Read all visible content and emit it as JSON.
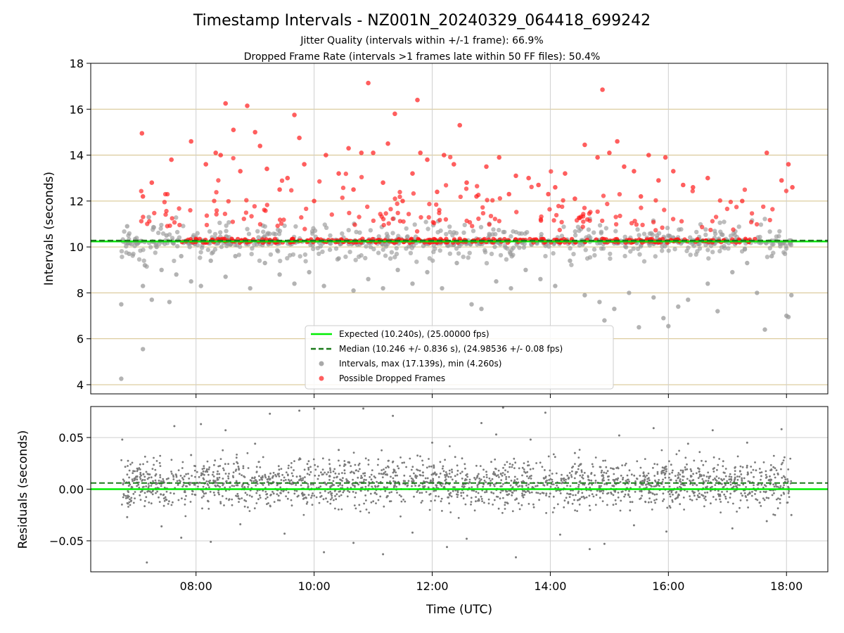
{
  "figure": {
    "title": "Timestamp Intervals - NZ001N_20240329_064418_699242",
    "subtitle_1": "Jitter Quality (intervals within +/-1 frame): 66.9%",
    "subtitle_2": "Dropped Frame Rate (intervals >1 frames late within 50 FF files): 50.4%"
  },
  "colors": {
    "expected": "#00ee00",
    "median": "#1b7a1b",
    "interval_points": "#9a9a9a",
    "dropped_points": "#ff1a1a",
    "residual_points": "#7a7a7a",
    "hgrid_top": "#d4c088",
    "grid": "#cfcfcf"
  },
  "chart_data": [
    {
      "type": "scatter",
      "panel": "top",
      "xlabel": "",
      "ylabel": "Intervals (seconds)",
      "xlim": [
        "06:13",
        "18:42"
      ],
      "ylim": [
        3.6,
        18
      ],
      "yticks": [
        4,
        6,
        8,
        10,
        12,
        14,
        16,
        18
      ],
      "xticks": [
        "08:00",
        "10:00",
        "12:00",
        "14:00",
        "16:00",
        "18:00"
      ],
      "grid": true,
      "legend_position": "lower-center",
      "expected_interval": 10.24,
      "median_interval": 10.246,
      "interval_max": 17.139,
      "interval_min": 4.26,
      "time_range": [
        "06:44",
        "18:05"
      ],
      "legend": [
        {
          "label": "Expected (10.240s), (25.00000 fps)",
          "style": "line-solid",
          "color_key": "expected"
        },
        {
          "label": "Median (10.246 +/- 0.836 s), (24.98536 +/- 0.08 fps)",
          "style": "line-dashed",
          "color_key": "median"
        },
        {
          "label": "Intervals, max (17.139s), min (4.260s)",
          "style": "dot",
          "color_key": "interval_points"
        },
        {
          "label": "Possible Dropped Frames",
          "style": "dot",
          "color_key": "dropped_points"
        }
      ],
      "series": [
        {
          "name": "Intervals",
          "points": [
            [
              "06:44",
              4.26
            ],
            [
              "06:44",
              7.5
            ],
            [
              "06:50",
              10.9
            ],
            [
              "06:52",
              9.7
            ],
            [
              "07:06",
              5.55
            ],
            [
              "07:06",
              8.3
            ],
            [
              "07:08",
              9.2
            ],
            [
              "07:12",
              11.3
            ],
            [
              "07:15",
              7.7
            ],
            [
              "07:20",
              10.0
            ],
            [
              "07:25",
              9.0
            ],
            [
              "07:30",
              10.5
            ],
            [
              "07:33",
              7.6
            ],
            [
              "07:40",
              8.8
            ],
            [
              "07:45",
              9.6
            ],
            [
              "07:55",
              8.5
            ],
            [
              "08:05",
              8.3
            ],
            [
              "08:15",
              9.4
            ],
            [
              "08:30",
              8.7
            ],
            [
              "08:40",
              9.6
            ],
            [
              "08:55",
              8.2
            ],
            [
              "09:10",
              9.3
            ],
            [
              "09:25",
              8.8
            ],
            [
              "09:40",
              8.4
            ],
            [
              "09:55",
              8.9
            ],
            [
              "10:10",
              8.3
            ],
            [
              "10:25",
              9.5
            ],
            [
              "10:40",
              8.1
            ],
            [
              "10:55",
              8.6
            ],
            [
              "11:10",
              8.2
            ],
            [
              "11:25",
              9.0
            ],
            [
              "11:40",
              8.4
            ],
            [
              "11:55",
              8.9
            ],
            [
              "12:10",
              8.2
            ],
            [
              "12:25",
              9.3
            ],
            [
              "12:40",
              7.5
            ],
            [
              "12:50",
              7.3
            ],
            [
              "13:05",
              8.5
            ],
            [
              "13:20",
              8.2
            ],
            [
              "13:35",
              9.0
            ],
            [
              "13:50",
              8.6
            ],
            [
              "14:05",
              8.3
            ],
            [
              "14:20",
              9.4
            ],
            [
              "14:35",
              7.9
            ],
            [
              "14:50",
              7.6
            ],
            [
              "14:55",
              6.8
            ],
            [
              "15:05",
              7.3
            ],
            [
              "15:20",
              8.0
            ],
            [
              "15:30",
              6.5
            ],
            [
              "15:45",
              7.8
            ],
            [
              "15:55",
              6.9
            ],
            [
              "16:00",
              6.55
            ],
            [
              "16:10",
              7.4
            ],
            [
              "16:20",
              7.7
            ],
            [
              "16:40",
              8.4
            ],
            [
              "16:50",
              7.2
            ],
            [
              "17:05",
              8.9
            ],
            [
              "17:20",
              9.3
            ],
            [
              "17:30",
              8.0
            ],
            [
              "17:38",
              6.4
            ],
            [
              "17:45",
              9.6
            ],
            [
              "18:00",
              7.0
            ],
            [
              "18:02",
              6.95
            ],
            [
              "18:05",
              7.9
            ]
          ]
        },
        {
          "name": "Possible Dropped Frames",
          "points": [
            [
              "07:05",
              14.95
            ],
            [
              "07:06",
              12.2
            ],
            [
              "07:15",
              12.8
            ],
            [
              "07:35",
              13.8
            ],
            [
              "07:55",
              14.6
            ],
            [
              "08:10",
              13.6
            ],
            [
              "08:20",
              14.1
            ],
            [
              "08:25",
              14.0
            ],
            [
              "08:30",
              16.25
            ],
            [
              "08:38",
              15.1
            ],
            [
              "08:45",
              13.3
            ],
            [
              "08:52",
              16.15
            ],
            [
              "09:00",
              15.0
            ],
            [
              "09:05",
              14.4
            ],
            [
              "09:12",
              13.4
            ],
            [
              "09:25",
              12.5
            ],
            [
              "09:33",
              13.0
            ],
            [
              "09:40",
              15.75
            ],
            [
              "09:45",
              14.75
            ],
            [
              "09:50",
              13.6
            ],
            [
              "10:00",
              12.0
            ],
            [
              "10:12",
              14.0
            ],
            [
              "10:25",
              13.2
            ],
            [
              "10:35",
              14.3
            ],
            [
              "10:40",
              12.5
            ],
            [
              "10:48",
              14.1
            ],
            [
              "10:55",
              17.14
            ],
            [
              "11:00",
              14.1
            ],
            [
              "11:10",
              12.8
            ],
            [
              "11:15",
              14.5
            ],
            [
              "11:22",
              15.8
            ],
            [
              "11:30",
              12.0
            ],
            [
              "11:40",
              13.2
            ],
            [
              "11:45",
              16.4
            ],
            [
              "11:48",
              14.1
            ],
            [
              "11:55",
              13.8
            ],
            [
              "12:05",
              12.4
            ],
            [
              "12:12",
              14.0
            ],
            [
              "12:22",
              13.6
            ],
            [
              "12:28",
              15.3
            ],
            [
              "12:35",
              12.8
            ],
            [
              "12:45",
              12.2
            ],
            [
              "12:55",
              13.5
            ],
            [
              "13:08",
              13.9
            ],
            [
              "13:18",
              12.3
            ],
            [
              "13:25",
              13.1
            ],
            [
              "13:38",
              13.0
            ],
            [
              "13:48",
              12.7
            ],
            [
              "13:58",
              12.3
            ],
            [
              "14:05",
              12.6
            ],
            [
              "14:15",
              13.2
            ],
            [
              "14:25",
              12.1
            ],
            [
              "14:35",
              14.45
            ],
            [
              "14:48",
              13.9
            ],
            [
              "14:53",
              16.85
            ],
            [
              "15:00",
              14.1
            ],
            [
              "15:08",
              14.6
            ],
            [
              "15:15",
              13.5
            ],
            [
              "15:25",
              13.3
            ],
            [
              "15:32",
              12.2
            ],
            [
              "15:40",
              14.0
            ],
            [
              "15:50",
              12.9
            ],
            [
              "15:57",
              13.9
            ],
            [
              "16:05",
              13.3
            ],
            [
              "16:15",
              12.7
            ],
            [
              "16:25",
              12.6
            ],
            [
              "16:40",
              13.0
            ],
            [
              "17:15",
              12.0
            ],
            [
              "17:40",
              14.1
            ],
            [
              "17:55",
              12.9
            ],
            [
              "18:02",
              13.6
            ],
            [
              "18:06",
              12.6
            ]
          ]
        }
      ]
    },
    {
      "type": "scatter",
      "panel": "bottom",
      "xlabel": "Time (UTC)",
      "ylabel": "Residuals (seconds)",
      "xlim": [
        "06:13",
        "18:42"
      ],
      "ylim": [
        -0.08,
        0.08
      ],
      "yticks": [
        -0.05,
        0.0,
        0.05
      ],
      "ytick_labels": [
        "−0.05",
        "0.00",
        "0.05"
      ],
      "xticks": [
        "08:00",
        "10:00",
        "12:00",
        "14:00",
        "16:00",
        "18:00"
      ],
      "grid": true,
      "expected_residual": 0.0,
      "median_residual": 0.006,
      "series": [
        {
          "name": "Residuals",
          "points": [
            [
              "06:45",
              0.048
            ],
            [
              "06:50",
              -0.027
            ],
            [
              "07:00",
              0.012
            ],
            [
              "07:10",
              -0.071
            ],
            [
              "07:25",
              -0.036
            ],
            [
              "07:38",
              0.061
            ],
            [
              "07:45",
              -0.047
            ],
            [
              "07:55",
              0.033
            ],
            [
              "08:05",
              0.063
            ],
            [
              "08:15",
              -0.051
            ],
            [
              "08:30",
              0.057
            ],
            [
              "08:45",
              -0.034
            ],
            [
              "09:00",
              0.044
            ],
            [
              "09:15",
              0.073
            ],
            [
              "09:30",
              -0.043
            ],
            [
              "09:45",
              0.076
            ],
            [
              "10:00",
              0.078
            ],
            [
              "10:10",
              -0.061
            ],
            [
              "10:25",
              0.038
            ],
            [
              "10:40",
              -0.052
            ],
            [
              "10:50",
              0.078
            ],
            [
              "11:10",
              -0.063
            ],
            [
              "11:20",
              0.071
            ],
            [
              "11:40",
              -0.042
            ],
            [
              "12:00",
              0.045
            ],
            [
              "12:15",
              -0.056
            ],
            [
              "12:35",
              -0.048
            ],
            [
              "12:50",
              0.064
            ],
            [
              "13:05",
              0.053
            ],
            [
              "13:12",
              0.079
            ],
            [
              "13:25",
              -0.066
            ],
            [
              "13:40",
              0.048
            ],
            [
              "13:55",
              0.074
            ],
            [
              "14:10",
              -0.044
            ],
            [
              "14:25",
              0.035
            ],
            [
              "14:40",
              -0.058
            ],
            [
              "14:55",
              -0.053
            ],
            [
              "15:10",
              0.052
            ],
            [
              "15:25",
              -0.035
            ],
            [
              "15:45",
              0.059
            ],
            [
              "15:58",
              -0.041
            ],
            [
              "16:20",
              0.044
            ],
            [
              "16:45",
              0.057
            ],
            [
              "17:05",
              -0.038
            ],
            [
              "17:20",
              0.045
            ],
            [
              "17:40",
              -0.031
            ],
            [
              "17:55",
              0.058
            ],
            [
              "18:05",
              -0.025
            ]
          ]
        }
      ]
    }
  ]
}
